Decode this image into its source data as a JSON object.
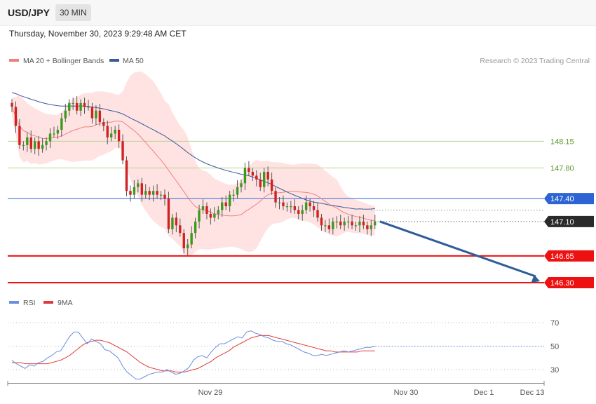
{
  "header": {
    "symbol": "USD/JPY",
    "interval": "30 MIN",
    "datetime": "Thursday, November 30, 2023 9:29:48 AM CET"
  },
  "colors": {
    "up": "#3a9a1a",
    "down": "#d42020",
    "wick": "#555555",
    "ma20": "#ef8080",
    "bands": "#ffd9d9",
    "ma50": "#3a5a98",
    "green_level": "#b4d48c",
    "blue_level": "#2d64d4",
    "red_level": "#ee1111",
    "arrow": "#2e5d9a",
    "rsi": "#6a8ee0",
    "rsi_ma": "#e03a3a"
  },
  "chart_data": [
    {
      "type": "candlestick",
      "legend": [
        {
          "label": "MA 20 + Bollinger Bands",
          "color": "#ef8080"
        },
        {
          "label": "MA 50",
          "color": "#3a5a98"
        }
      ],
      "legend_position": "top-left",
      "credit": "Research © 2023 Trading Central",
      "ylim": [
        146.25,
        148.8
      ],
      "x_ticks": [
        {
          "label": "Nov 29",
          "bar": 48
        },
        {
          "label": "Nov 30",
          "bar": 96
        },
        {
          "label": "Dec 1",
          "bar": 114
        },
        {
          "label": "Dec 13",
          "bar": 126
        }
      ],
      "levels": [
        {
          "value": 148.15,
          "label": "148.15",
          "style": "green"
        },
        {
          "value": 147.8,
          "label": "147.80",
          "style": "green"
        },
        {
          "value": 147.4,
          "label": "147.40",
          "style": "blue"
        },
        {
          "value": 147.1,
          "label": "147.10",
          "style": "current"
        },
        {
          "value": 146.65,
          "label": "146.65",
          "style": "red"
        },
        {
          "value": 146.3,
          "label": "146.30",
          "style": "red"
        }
      ],
      "forecast": {
        "from": 147.1,
        "to": 146.3,
        "direction": "down"
      },
      "close": [
        148.6,
        148.35,
        148.1,
        148.1,
        148.2,
        148.05,
        148.15,
        148.05,
        148.1,
        148.15,
        148.25,
        148.25,
        148.3,
        148.45,
        148.55,
        148.65,
        148.65,
        148.55,
        148.65,
        148.6,
        148.6,
        148.45,
        148.55,
        148.4,
        148.35,
        148.2,
        148.25,
        148.3,
        148.15,
        147.9,
        147.5,
        147.45,
        147.55,
        147.6,
        147.45,
        147.5,
        147.45,
        147.5,
        147.45,
        147.45,
        147.4,
        147.0,
        147.15,
        147.05,
        146.95,
        146.75,
        146.8,
        146.95,
        147.1,
        147.25,
        147.3,
        147.2,
        147.15,
        147.2,
        147.25,
        147.35,
        147.3,
        147.45,
        147.45,
        147.55,
        147.6,
        147.8,
        147.75,
        147.7,
        147.65,
        147.55,
        147.75,
        147.65,
        147.5,
        147.35,
        147.35,
        147.3,
        147.3,
        147.3,
        147.25,
        147.2,
        147.25,
        147.35,
        147.3,
        147.25,
        147.15,
        147.05,
        147.05,
        147.0,
        147.1,
        147.1,
        147.05,
        147.1,
        147.1,
        147.05,
        147.05,
        147.1,
        147.05,
        147.0,
        147.05,
        147.1
      ]
    },
    {
      "type": "line",
      "legend": [
        {
          "label": "RSI",
          "color": "#6a8ee0"
        },
        {
          "label": "9MA",
          "color": "#e03a3a"
        }
      ],
      "ylim": [
        20,
        80
      ],
      "y_ticks": [
        70,
        50,
        30
      ],
      "series": [
        {
          "name": "RSI",
          "values": [
            38,
            35,
            33,
            31,
            34,
            33,
            36,
            37,
            40,
            42,
            45,
            46,
            52,
            58,
            62,
            62,
            57,
            52,
            56,
            54,
            52,
            47,
            46,
            43,
            40,
            33,
            28,
            25,
            22,
            22,
            24,
            26,
            27,
            28,
            28,
            30,
            28,
            26,
            27,
            29,
            32,
            38,
            41,
            42,
            40,
            45,
            49,
            52,
            52,
            54,
            56,
            58,
            57,
            62,
            63,
            61,
            60,
            58,
            57,
            55,
            54,
            54,
            52,
            51,
            49,
            47,
            45,
            44,
            42,
            42,
            43,
            42,
            43,
            44,
            45,
            46,
            45,
            46,
            47,
            48,
            49,
            49,
            50
          ]
        },
        {
          "name": "9MA",
          "values": [
            36,
            36,
            36,
            35,
            35,
            35,
            35,
            35,
            35,
            36,
            37,
            38,
            40,
            42,
            45,
            48,
            51,
            53,
            54,
            55,
            55,
            54,
            53,
            51,
            49,
            47,
            45,
            42,
            39,
            36,
            34,
            32,
            31,
            30,
            29,
            29,
            29,
            28,
            28,
            28,
            29,
            30,
            31,
            33,
            35,
            37,
            40,
            42,
            44,
            46,
            49,
            51,
            53,
            55,
            57,
            58,
            59,
            59,
            59,
            58,
            57,
            56,
            55,
            54,
            53,
            52,
            51,
            50,
            49,
            48,
            47,
            46,
            46,
            45,
            45,
            45,
            45,
            45,
            45,
            46,
            46,
            46,
            46
          ]
        }
      ]
    }
  ]
}
